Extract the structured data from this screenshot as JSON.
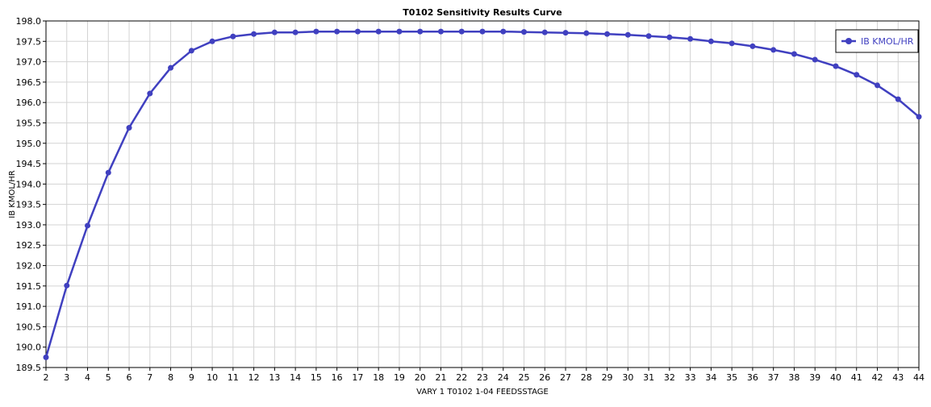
{
  "chart_data": {
    "type": "line",
    "title": "T0102 Sensitivity Results Curve",
    "xlabel": "VARY   1 T0102 1-04 FEEDSSTAGE",
    "ylabel": "IB KMOL/HR",
    "xlim": [
      2,
      44
    ],
    "ylim": [
      189.5,
      198.0
    ],
    "x_ticks": [
      2,
      3,
      4,
      5,
      6,
      7,
      8,
      9,
      10,
      11,
      12,
      13,
      14,
      15,
      16,
      17,
      18,
      19,
      20,
      21,
      22,
      23,
      24,
      25,
      26,
      27,
      28,
      29,
      30,
      31,
      32,
      33,
      34,
      35,
      36,
      37,
      38,
      39,
      40,
      41,
      42,
      43,
      44
    ],
    "y_ticks": [
      "189.5",
      "190.0",
      "190.5",
      "191.0",
      "191.5",
      "192.0",
      "192.5",
      "193.0",
      "193.5",
      "194.0",
      "194.5",
      "195.0",
      "195.5",
      "196.0",
      "196.5",
      "197.0",
      "197.5",
      "198.0"
    ],
    "grid": true,
    "legend_position": "top-right",
    "series": [
      {
        "name": "IB KMOL/HR",
        "color": "#4040c0",
        "x": [
          2,
          3,
          4,
          5,
          6,
          7,
          8,
          9,
          10,
          11,
          12,
          13,
          14,
          15,
          16,
          17,
          18,
          19,
          20,
          21,
          22,
          23,
          24,
          25,
          26,
          27,
          28,
          29,
          30,
          31,
          32,
          33,
          34,
          35,
          36,
          37,
          38,
          39,
          40,
          41,
          42,
          43,
          44
        ],
        "values": [
          189.75,
          191.51,
          192.98,
          194.28,
          195.38,
          196.22,
          196.85,
          197.27,
          197.5,
          197.62,
          197.68,
          197.72,
          197.72,
          197.74,
          197.74,
          197.74,
          197.74,
          197.74,
          197.74,
          197.74,
          197.74,
          197.74,
          197.74,
          197.73,
          197.72,
          197.71,
          197.7,
          197.68,
          197.66,
          197.63,
          197.6,
          197.56,
          197.5,
          197.45,
          197.38,
          197.29,
          197.19,
          197.05,
          196.89,
          196.68,
          196.42,
          196.08,
          195.65
        ]
      }
    ]
  }
}
